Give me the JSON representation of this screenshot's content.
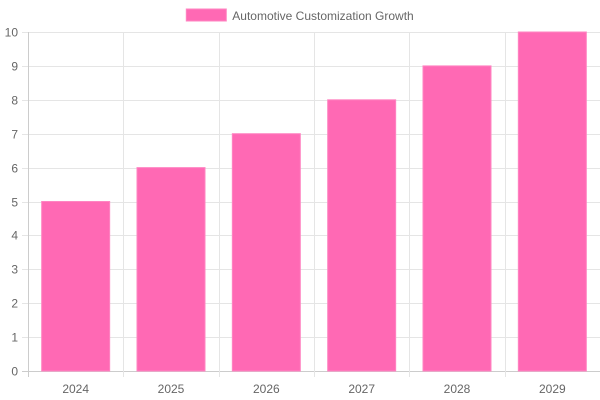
{
  "chart_data": {
    "type": "bar",
    "categories": [
      "2024",
      "2025",
      "2026",
      "2027",
      "2028",
      "2029"
    ],
    "series": [
      {
        "name": "Automotive Customization Growth",
        "values": [
          5,
          6,
          7,
          8,
          9,
          10
        ],
        "color": "#ff69b4"
      }
    ],
    "ylim": [
      0,
      10
    ],
    "yticks": [
      0,
      1,
      2,
      3,
      4,
      5,
      6,
      7,
      8,
      9,
      10
    ],
    "grid": true,
    "legend_position": "top"
  },
  "colors": {
    "bar_fill": "#ff69b4",
    "bar_border": "#ff85c2",
    "grid": "#e5e5e5",
    "axis": "#cccccc",
    "text": "#666666"
  }
}
